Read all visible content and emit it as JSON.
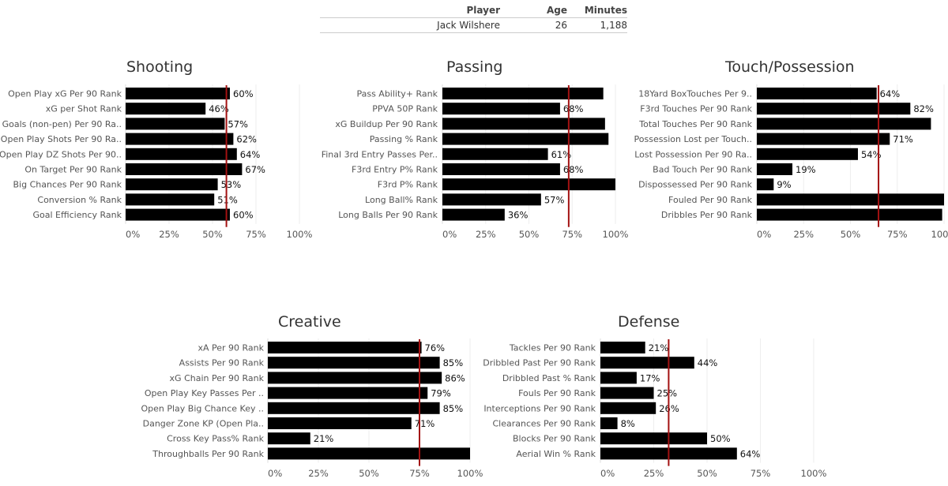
{
  "player_table": {
    "headers": {
      "player": "Player",
      "age": "Age",
      "minutes": "Minutes"
    },
    "row": {
      "player": "Jack Wilshere",
      "age": "26",
      "minutes": "1,188"
    }
  },
  "chart_data": [
    {
      "type": "bar",
      "title": "Shooting",
      "categories": [
        "Open Play xG Per 90 Rank",
        "xG per Shot Rank",
        "Goals (non-pen) Per 90 Ra..",
        "Open Play Shots Per 90 Ra..",
        "Open Play DZ Shots Per 90..",
        "On Target Per 90 Rank",
        "Big Chances Per 90 Rank",
        "Conversion % Rank",
        "Goal Efficiency Rank"
      ],
      "values": [
        60,
        46,
        57,
        62,
        64,
        67,
        53,
        51,
        60
      ],
      "labels": [
        "60%",
        "46%",
        "57%",
        "62%",
        "64%",
        "67%",
        "53%",
        "51%",
        "60%"
      ],
      "reference_line": 58,
      "xlim": [
        0,
        100
      ],
      "ticks": [
        "0%",
        "25%",
        "50%",
        "75%",
        "100%"
      ]
    },
    {
      "type": "bar",
      "title": "Passing",
      "categories": [
        "Pass Ability+ Rank",
        "PPVA 50P Rank",
        "xG Buildup Per 90 Rank",
        "Passing % Rank",
        "Final 3rd Entry Passes Per..",
        "F3rd Entry P% Rank",
        "F3rd P% Rank",
        "Long Ball% Rank",
        "Long Balls Per 90  Rank"
      ],
      "values": [
        93,
        68,
        94,
        96,
        61,
        68,
        100,
        57,
        36
      ],
      "labels": [
        "",
        "68%",
        "",
        "",
        "61%",
        "68%",
        "",
        "57%",
        "36%"
      ],
      "reference_line": 73,
      "xlim": [
        0,
        100
      ],
      "ticks": [
        "0%",
        "25%",
        "50%",
        "75%",
        "100%"
      ]
    },
    {
      "type": "bar",
      "title": "Touch/Possession",
      "categories": [
        "18Yard BoxTouches Per 9..",
        "F3rd Touches Per 90 Rank",
        "Total Touches Per 90 Rank",
        "Possession Lost per Touch..",
        "Lost Possession Per 90 Ra..",
        "Bad Touch Per 90 Rank",
        "Dispossessed Per 90 Rank",
        "Fouled Per 90 Rank",
        "Dribbles Per 90 Rank"
      ],
      "values": [
        64,
        82,
        93,
        71,
        54,
        19,
        9,
        100,
        99
      ],
      "labels": [
        "64%",
        "82%",
        "",
        "71%",
        "54%",
        "19%",
        "9%",
        "",
        ""
      ],
      "reference_line": 65,
      "xlim": [
        0,
        100
      ],
      "ticks": [
        "0%",
        "25%",
        "50%",
        "75%",
        "100%"
      ]
    },
    {
      "type": "bar",
      "title": "Creative",
      "categories": [
        "xA Per 90 Rank",
        "Assists Per 90 Rank",
        "xG Chain Per 90 Rank",
        "Open Play Key Passes Per ..",
        "Open Play Big Chance Key ..",
        "Danger Zone KP (Open Pla..",
        "Cross Key Pass% Rank",
        "Throughballs Per 90 Rank"
      ],
      "values": [
        76,
        85,
        86,
        79,
        85,
        71,
        21,
        100
      ],
      "labels": [
        "76%",
        "85%",
        "86%",
        "79%",
        "85%",
        "71%",
        "21%",
        ""
      ],
      "reference_line": 75,
      "xlim": [
        0,
        100
      ],
      "ticks": [
        "0%",
        "25%",
        "50%",
        "75%",
        "100%"
      ]
    },
    {
      "type": "bar",
      "title": "Defense",
      "categories": [
        "Tackles Per 90 Rank",
        "Dribbled Past Per 90 Rank",
        "Dribbled Past % Rank",
        "Fouls Per 90 Rank",
        "Interceptions Per 90 Rank",
        "Clearances Per 90 Rank",
        "Blocks Per 90 Rank",
        "Aerial Win % Rank"
      ],
      "values": [
        21,
        44,
        17,
        25,
        26,
        8,
        50,
        64
      ],
      "labels": [
        "21%",
        "44%",
        "17%",
        "25%",
        "26%",
        "8%",
        "50%",
        "64%"
      ],
      "reference_line": 32,
      "xlim": [
        0,
        100
      ],
      "ticks": [
        "0%",
        "25%",
        "50%",
        "75%",
        "100%"
      ]
    }
  ],
  "colors": {
    "bar": "#000000",
    "reference_line": "#a31212",
    "grid": "#eeeeee"
  }
}
